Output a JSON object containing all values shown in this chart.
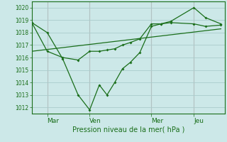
{
  "background_color": "#cce8e8",
  "grid_color": "#aacccc",
  "line_color": "#1a6e1a",
  "vline_color": "#cc9999",
  "text_color": "#1a6e1a",
  "xlabel": "Pression niveau de la mer( hPa )",
  "ylim": [
    1011.5,
    1020.5
  ],
  "yticks": [
    1012,
    1013,
    1014,
    1015,
    1016,
    1017,
    1018,
    1019,
    1020
  ],
  "xlim": [
    0,
    100
  ],
  "xtick_labels": [
    "Mar",
    "Ven",
    "Mer",
    "Jeu"
  ],
  "xtick_positions": [
    8,
    30,
    62,
    84
  ],
  "vlines": [
    8,
    30,
    62,
    84
  ],
  "series1_x": [
    0,
    8,
    16,
    24,
    30,
    35,
    39,
    43,
    47,
    51,
    56,
    62,
    67,
    72,
    84,
    90,
    98
  ],
  "series1_y": [
    1018.8,
    1018.0,
    1015.9,
    1013.0,
    1011.8,
    1013.8,
    1013.0,
    1014.0,
    1015.1,
    1015.6,
    1016.4,
    1018.5,
    1018.7,
    1018.9,
    1020.0,
    1019.2,
    1018.7
  ],
  "series2_x": [
    0,
    8,
    16,
    24,
    30,
    35,
    39,
    43,
    47,
    51,
    56,
    62,
    67,
    72,
    84,
    90,
    98
  ],
  "series2_y": [
    1018.8,
    1016.5,
    1016.0,
    1015.8,
    1016.5,
    1016.5,
    1016.6,
    1016.7,
    1017.0,
    1017.2,
    1017.5,
    1018.7,
    1018.7,
    1018.8,
    1018.7,
    1018.5,
    1018.6
  ],
  "series3_x": [
    0,
    98
  ],
  "series3_y": [
    1016.5,
    1018.3
  ]
}
